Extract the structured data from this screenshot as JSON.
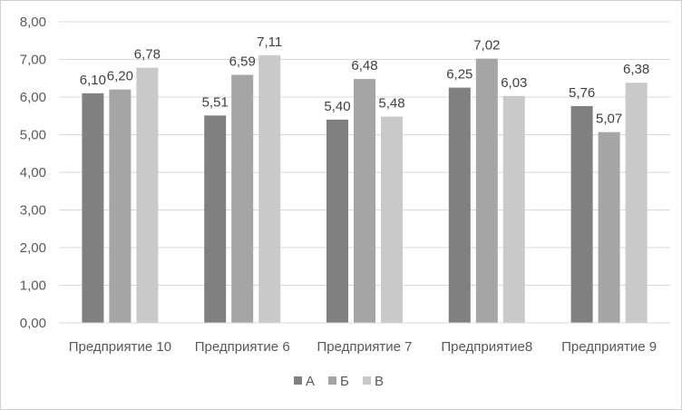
{
  "chart_data": {
    "type": "bar",
    "title": "",
    "xlabel": "",
    "ylabel": "",
    "categories": [
      "Предприятие 10",
      "Предприятие 6",
      "Предприятие 7",
      "Предприятие8",
      "Предприятие 9"
    ],
    "series": [
      {
        "name": "А",
        "color": "#808080",
        "values": [
          6.1,
          5.51,
          5.4,
          6.25,
          5.76
        ],
        "labels": [
          "6,10",
          "5,51",
          "5,40",
          "6,25",
          "5,76"
        ]
      },
      {
        "name": "Б",
        "color": "#a5a5a5",
        "values": [
          6.2,
          6.59,
          6.48,
          7.02,
          5.07
        ],
        "labels": [
          "6,20",
          "6,59",
          "6,48",
          "7,02",
          "5,07"
        ]
      },
      {
        "name": "В",
        "color": "#c9c9c9",
        "values": [
          6.78,
          7.11,
          5.48,
          6.03,
          6.38
        ],
        "labels": [
          "6,78",
          "7,11",
          "5,48",
          "6,03",
          "6,38"
        ]
      }
    ],
    "ylim": [
      0,
      8
    ],
    "yticks": [
      0,
      1,
      2,
      3,
      4,
      5,
      6,
      7,
      8
    ],
    "ytick_labels": [
      "0,00",
      "1,00",
      "2,00",
      "3,00",
      "4,00",
      "5,00",
      "6,00",
      "7,00",
      "8,00"
    ],
    "grid": true,
    "legend_position": "bottom"
  }
}
